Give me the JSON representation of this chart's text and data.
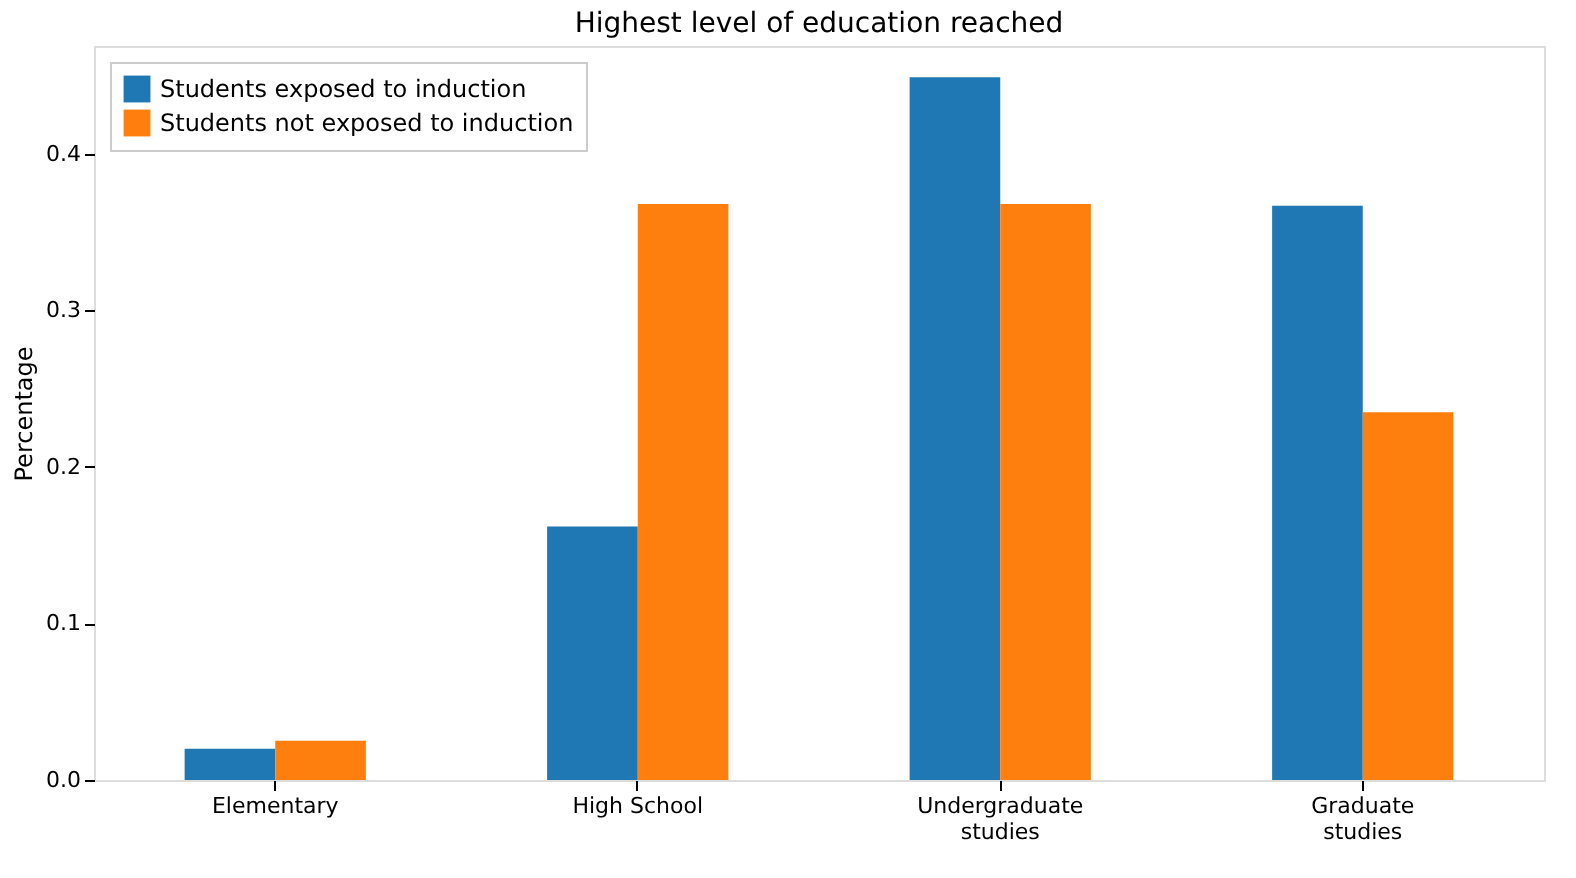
{
  "chart_data": {
    "type": "bar",
    "title": "Highest level of education reached",
    "ylabel": "Percentage",
    "categories": [
      "Elementary",
      "High School",
      "Undergraduate\nstudies",
      "Graduate\nstudies"
    ],
    "series": [
      {
        "name": "Students exposed to induction",
        "color": "#1f77b4",
        "values": [
          0.02,
          0.162,
          0.449,
          0.367
        ]
      },
      {
        "name": "Students not exposed to induction",
        "color": "#ff7f0e",
        "values": [
          0.025,
          0.368,
          0.368,
          0.235
        ]
      }
    ],
    "ylim": [
      0,
      0.469
    ],
    "yticks": [
      {
        "value": 0,
        "label": "0.0"
      },
      {
        "value": 0.1,
        "label": "0.1"
      },
      {
        "value": 0.2,
        "label": "0.2"
      },
      {
        "value": 0.3,
        "label": "0.3"
      },
      {
        "value": 0.4,
        "label": "0.4"
      }
    ],
    "grid": false,
    "legend": "top left"
  }
}
